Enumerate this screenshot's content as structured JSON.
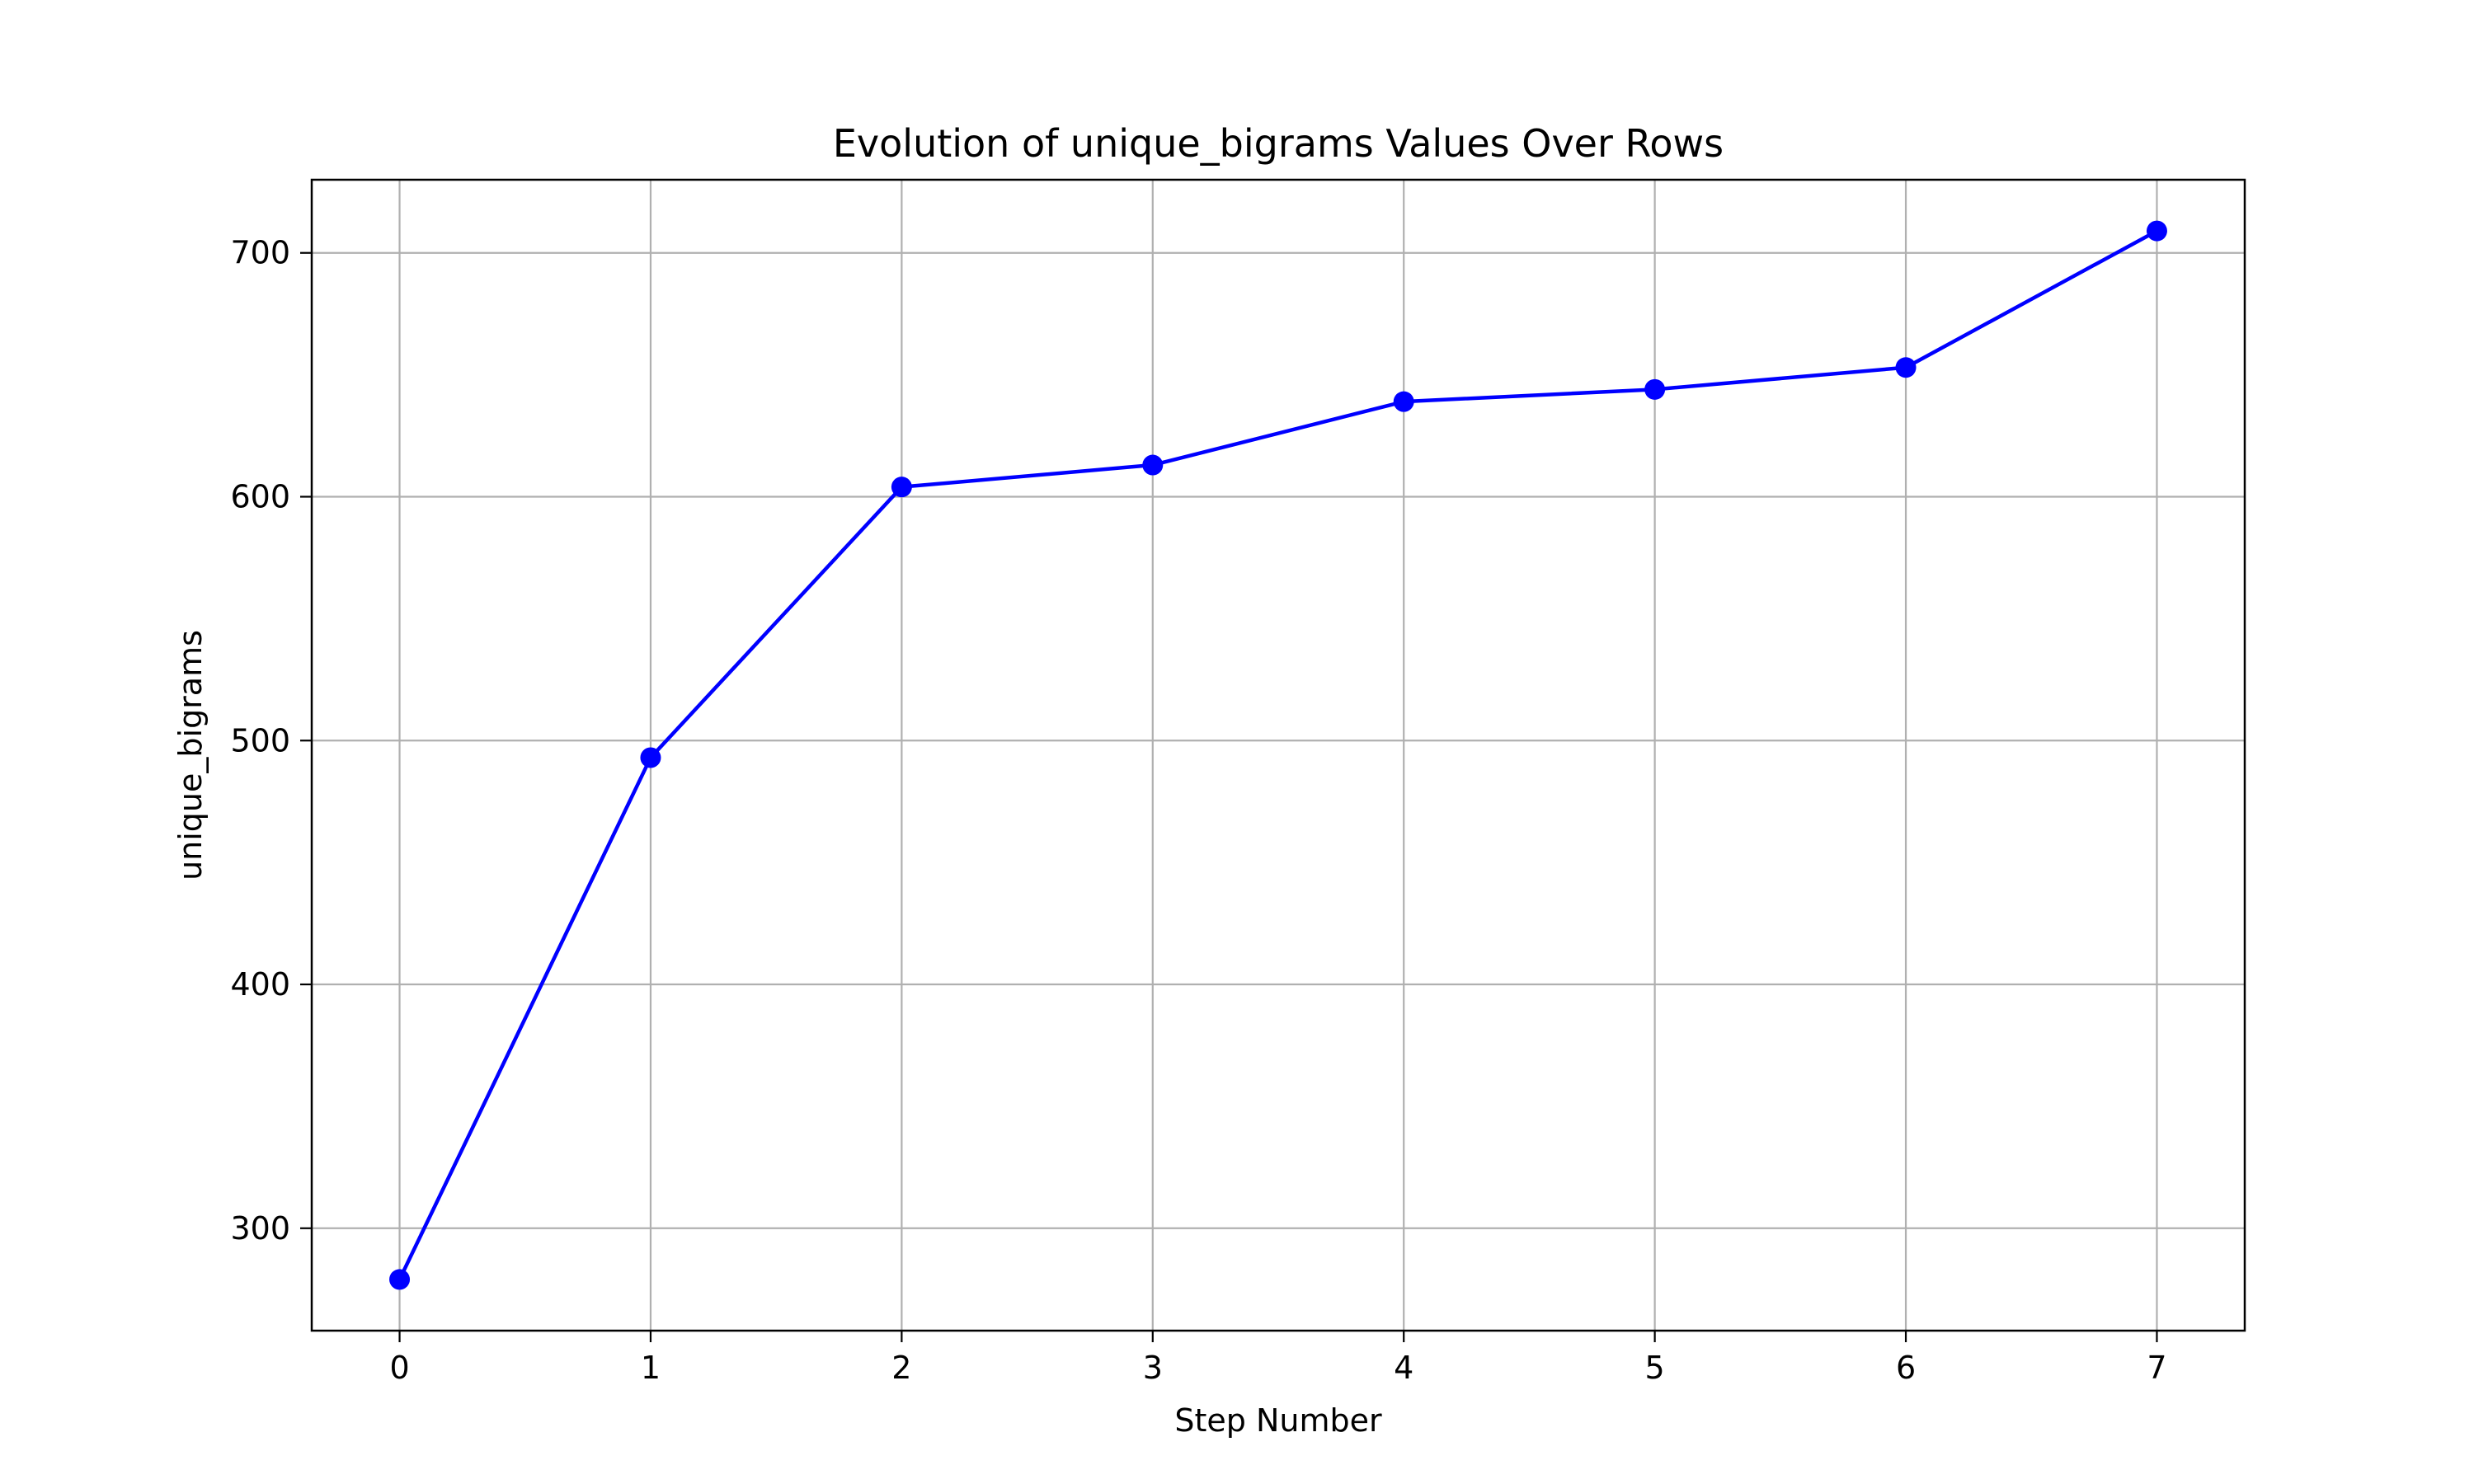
{
  "chart_data": {
    "type": "line",
    "title": "Evolution of unique_bigrams Values Over Rows",
    "xlabel": "Step Number",
    "ylabel": "unique_bigrams",
    "x": [
      0,
      1,
      2,
      3,
      4,
      5,
      6,
      7
    ],
    "series": [
      {
        "values": [
          279,
          493,
          604,
          613,
          639,
          644,
          653,
          709
        ],
        "color": "#0000ff",
        "marker": "circle"
      }
    ],
    "xlim": [
      -0.35,
      7.35
    ],
    "ylim": [
      258,
      730
    ],
    "x_ticks": [
      "0",
      "1",
      "2",
      "3",
      "4",
      "5",
      "6",
      "7"
    ],
    "y_ticks": [
      "300",
      "400",
      "500",
      "600",
      "700"
    ],
    "grid": true,
    "colors": {
      "line": "#0000ff",
      "grid": "#b0b0b0",
      "frame": "#000000"
    }
  }
}
